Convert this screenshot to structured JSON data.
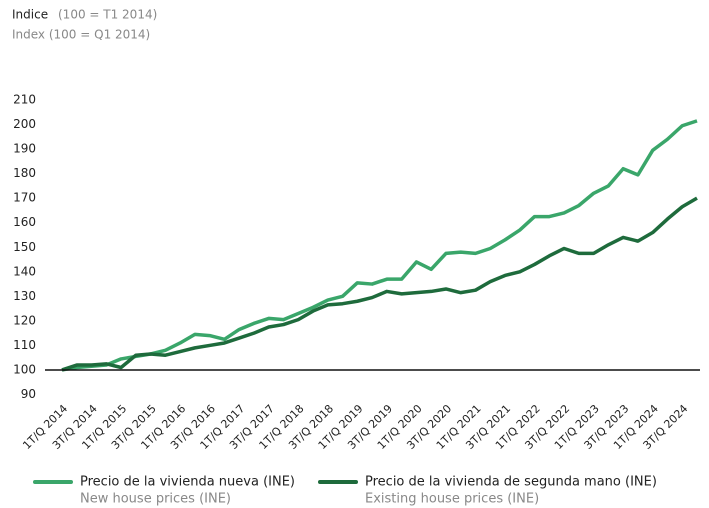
{
  "chart_data": {
    "type": "line",
    "title": "Indice",
    "title_note": "(100 = T1 2014)",
    "subtitle": "Index (100 = Q1 2014)",
    "categories": [
      "1T/Q 2014",
      null,
      "3T/Q 2014",
      null,
      "1T/Q 2015",
      null,
      "3T/Q 2015",
      null,
      "1T/Q 2016",
      null,
      "3T/Q 2016",
      null,
      "1T/Q 2017",
      null,
      "3T/Q 2017",
      null,
      "1T/Q 2018",
      null,
      "3T/Q 2018",
      null,
      "1T/Q 2019",
      null,
      "3T/Q 2019",
      null,
      "1T/Q 2020",
      null,
      "3T/Q 2020",
      null,
      "1T/Q 2021",
      null,
      "3T/Q 2021",
      null,
      "1T/Q 2022",
      null,
      "3T/Q 2022",
      null,
      "1T/Q 2023",
      null,
      "3T/Q 2023",
      null,
      "1T/Q 2024",
      null,
      "3T/Q 2024",
      null
    ],
    "series": [
      {
        "name": "Precio de la vivienda nueva (INE)",
        "name_en": "New house prices (INE)",
        "color": "#3aa66a",
        "values": [
          100,
          101,
          101.5,
          102,
          104.5,
          105.5,
          106.5,
          108,
          111,
          114.5,
          114,
          112.5,
          116.5,
          119,
          121,
          120.5,
          123,
          125.5,
          128.5,
          130,
          135.5,
          135,
          137,
          137,
          144,
          141,
          147.5,
          148,
          147.5,
          149.5,
          153,
          157,
          162.5,
          162.5,
          164,
          167,
          172,
          175,
          182,
          179.5,
          189.5,
          194,
          199.5,
          201.5
        ]
      },
      {
        "name": "Precio de la vivienda de segunda mano (INE)",
        "name_en": "Existing house prices (INE)",
        "color": "#1e6b3c",
        "values": [
          100,
          102,
          102,
          102.5,
          101,
          106,
          106.5,
          106,
          107.5,
          109,
          110,
          111,
          113,
          115,
          117.5,
          118.5,
          120.5,
          124,
          126.5,
          127,
          128,
          129.5,
          132,
          131,
          131.5,
          132,
          133,
          131.5,
          132.5,
          136,
          138.5,
          140,
          143,
          146.5,
          149.5,
          147.5,
          147.5,
          151,
          154,
          152.5,
          156,
          161.5,
          166.5,
          170
        ]
      }
    ],
    "ylim": [
      90,
      210
    ],
    "yticks": [
      90,
      100,
      110,
      120,
      130,
      140,
      150,
      160,
      170,
      180,
      190,
      200,
      210
    ],
    "baseline": 100,
    "grid": false
  }
}
